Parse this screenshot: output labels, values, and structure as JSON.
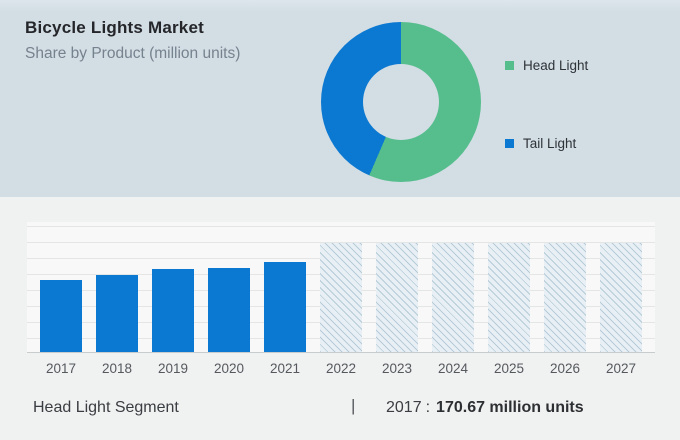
{
  "header": {
    "title": "Bicycle Lights Market",
    "subtitle": "Share by Product (million units)"
  },
  "legend": {
    "items": [
      {
        "label": "Head Light",
        "color": "#56bd8d"
      },
      {
        "label": "Tail Light",
        "color": "#0b78d1"
      }
    ]
  },
  "footer": {
    "segment_label": "Head Light Segment",
    "separator": "|",
    "stat_year": "2017",
    "stat_colon": ":",
    "stat_value": "170.67 million units"
  },
  "colors": {
    "hero_background": "#d2dde4",
    "section_background": "#f0f1f1",
    "bar_blue": "#0b78d1",
    "donut_green": "#56bd8d",
    "donut_blue": "#0b78d1",
    "hatch_line": "#b6cbd7",
    "hatch_fill": "#e8f0f5"
  },
  "chart_data": [
    {
      "type": "pie",
      "subtype": "donut",
      "title": "Share by Product (million units)",
      "legend_position": "right",
      "segments": [
        {
          "label": "Head Light",
          "share_pct": 56.5,
          "color": "#56bd8d"
        },
        {
          "label": "Tail Light",
          "share_pct": 43.5,
          "color": "#0b78d1"
        }
      ]
    },
    {
      "type": "bar",
      "title": "Head Light Segment",
      "ylabel": "million units",
      "categories": [
        "2017",
        "2018",
        "2019",
        "2020",
        "2021",
        "2022",
        "2023",
        "2024",
        "2025",
        "2026",
        "2027"
      ],
      "series": [
        {
          "name": "Head Light",
          "values": [
            170.67,
            182.5,
            196.5,
            199,
            213.5,
            null,
            null,
            null,
            null,
            null,
            null
          ]
        }
      ],
      "forecast_categories": [
        "2022",
        "2023",
        "2024",
        "2025",
        "2026",
        "2027"
      ],
      "labeled_point": {
        "year": "2017",
        "value": 170.67,
        "unit": "million units"
      },
      "bar_color": "#0b78d1",
      "grid": true,
      "y_axis_ticks_visible": false
    }
  ]
}
